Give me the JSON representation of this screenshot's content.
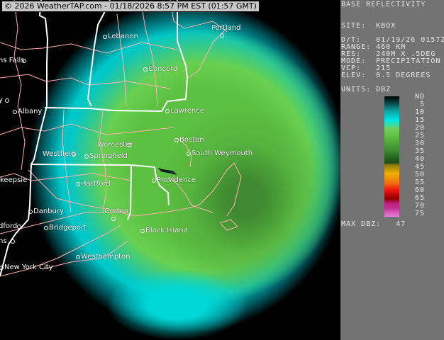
{
  "header": {
    "stamp": "© 2026 WeatherTAP.com - 01/18/2026  8:57 PM EST (01:57 GMT)"
  },
  "panel": {
    "title": "BASE REFLECTIVITY",
    "site": "SITE:  KBOX",
    "datetime": "D/T:   01/19/26 0157Z",
    "range": "RANGE: 460 KM",
    "resolution": "RES:   240M X .5DEG",
    "mode": "MODE:  PRECIPITATION",
    "vcp": "VCP:   215",
    "elev": "ELEV:  0.5 DEGREES",
    "units": "UNITS: DBZ",
    "legend_ticks": [
      "ND",
      "5",
      "10",
      "15",
      "20",
      "25",
      "30",
      "35",
      "40",
      "45",
      "50",
      "55",
      "60",
      "65",
      "70",
      "75"
    ],
    "max_dbz": "MAX DBZ:   47"
  },
  "cities": [
    {
      "name": "Lebanon"
    },
    {
      "name": "Portland"
    },
    {
      "name": "ns Falls"
    },
    {
      "name": "Concord"
    },
    {
      "name": "y"
    },
    {
      "name": "Albany"
    },
    {
      "name": "Lawrence"
    },
    {
      "name": "Boston"
    },
    {
      "name": "South Weymouth"
    },
    {
      "name": "Worcester"
    },
    {
      "name": "Westfield"
    },
    {
      "name": "Springfield"
    },
    {
      "name": "Hartford"
    },
    {
      "name": "Providence"
    },
    {
      "name": "keepsie"
    },
    {
      "name": "Danbury"
    },
    {
      "name": "Groton"
    },
    {
      "name": "Bridgeport"
    },
    {
      "name": "dford"
    },
    {
      "name": "ns"
    },
    {
      "name": "Block Island"
    },
    {
      "name": "Westhampton"
    },
    {
      "name": "New York City"
    }
  ],
  "colors": {
    "panel": "#737373",
    "state_lines": "#ffffff",
    "county_lines": "#ffb0b0",
    "light_echo": "#00e8e8",
    "moderate_echo": "#70d050"
  }
}
